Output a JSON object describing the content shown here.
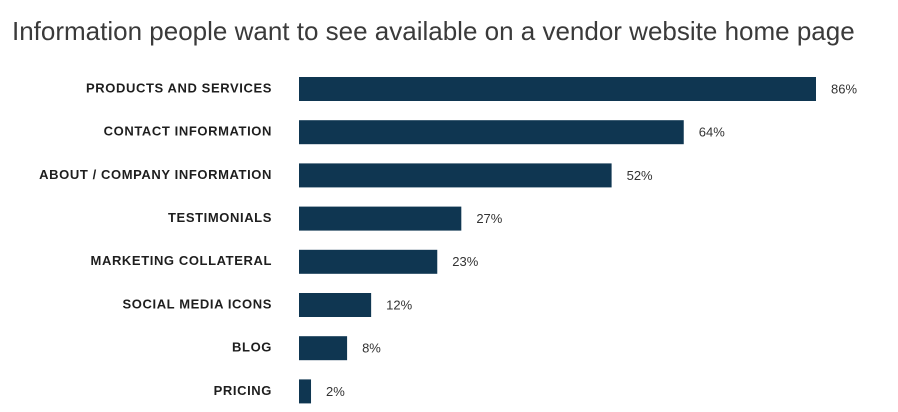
{
  "chart_data": {
    "type": "bar",
    "orientation": "horizontal",
    "title": "Information people want to see available on a vendor website home page",
    "categories": [
      "PRODUCTS AND SERVICES",
      "CONTACT INFORMATION",
      "ABOUT / COMPANY INFORMATION",
      "TESTIMONIALS",
      "MARKETING COLLATERAL",
      "SOCIAL MEDIA ICONS",
      "BLOG",
      "PRICING"
    ],
    "values": [
      86,
      64,
      52,
      27,
      23,
      12,
      8,
      2
    ],
    "value_labels": [
      "86%",
      "64%",
      "52%",
      "27%",
      "23%",
      "12%",
      "8%",
      "2%"
    ],
    "color": "#0f3651"
  }
}
